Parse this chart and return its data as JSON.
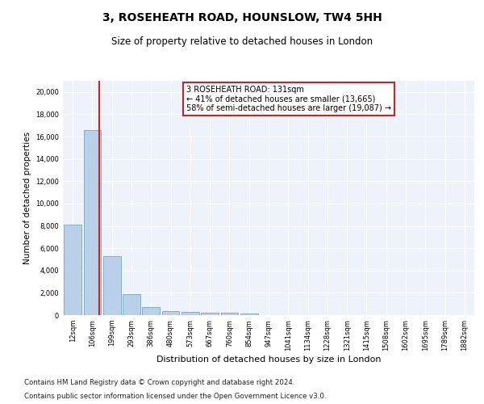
{
  "title": "3, ROSEHEATH ROAD, HOUNSLOW, TW4 5HH",
  "subtitle": "Size of property relative to detached houses in London",
  "xlabel": "Distribution of detached houses by size in London",
  "ylabel": "Number of detached properties",
  "bar_color": "#b8d0e8",
  "bar_edge_color": "#6699bb",
  "highlight_color": "#cc2222",
  "background_color": "#eef2fa",
  "categories": [
    "12sqm",
    "106sqm",
    "199sqm",
    "293sqm",
    "386sqm",
    "480sqm",
    "573sqm",
    "667sqm",
    "760sqm",
    "854sqm",
    "947sqm",
    "1041sqm",
    "1134sqm",
    "1228sqm",
    "1321sqm",
    "1415sqm",
    "1508sqm",
    "1602sqm",
    "1695sqm",
    "1789sqm",
    "1882sqm"
  ],
  "values": [
    8100,
    16550,
    5300,
    1850,
    700,
    380,
    290,
    230,
    195,
    165,
    0,
    0,
    0,
    0,
    0,
    0,
    0,
    0,
    0,
    0,
    0
  ],
  "ylim": [
    0,
    21000
  ],
  "yticks": [
    0,
    2000,
    4000,
    6000,
    8000,
    10000,
    12000,
    14000,
    16000,
    18000,
    20000
  ],
  "property_line_x": 1.35,
  "annotation_title": "3 ROSEHEATH ROAD: 131sqm",
  "annotation_line1": "← 41% of detached houses are smaller (13,665)",
  "annotation_line2": "58% of semi-detached houses are larger (19,087) →",
  "footnote1": "Contains HM Land Registry data © Crown copyright and database right 2024.",
  "footnote2": "Contains public sector information licensed under the Open Government Licence v3.0."
}
